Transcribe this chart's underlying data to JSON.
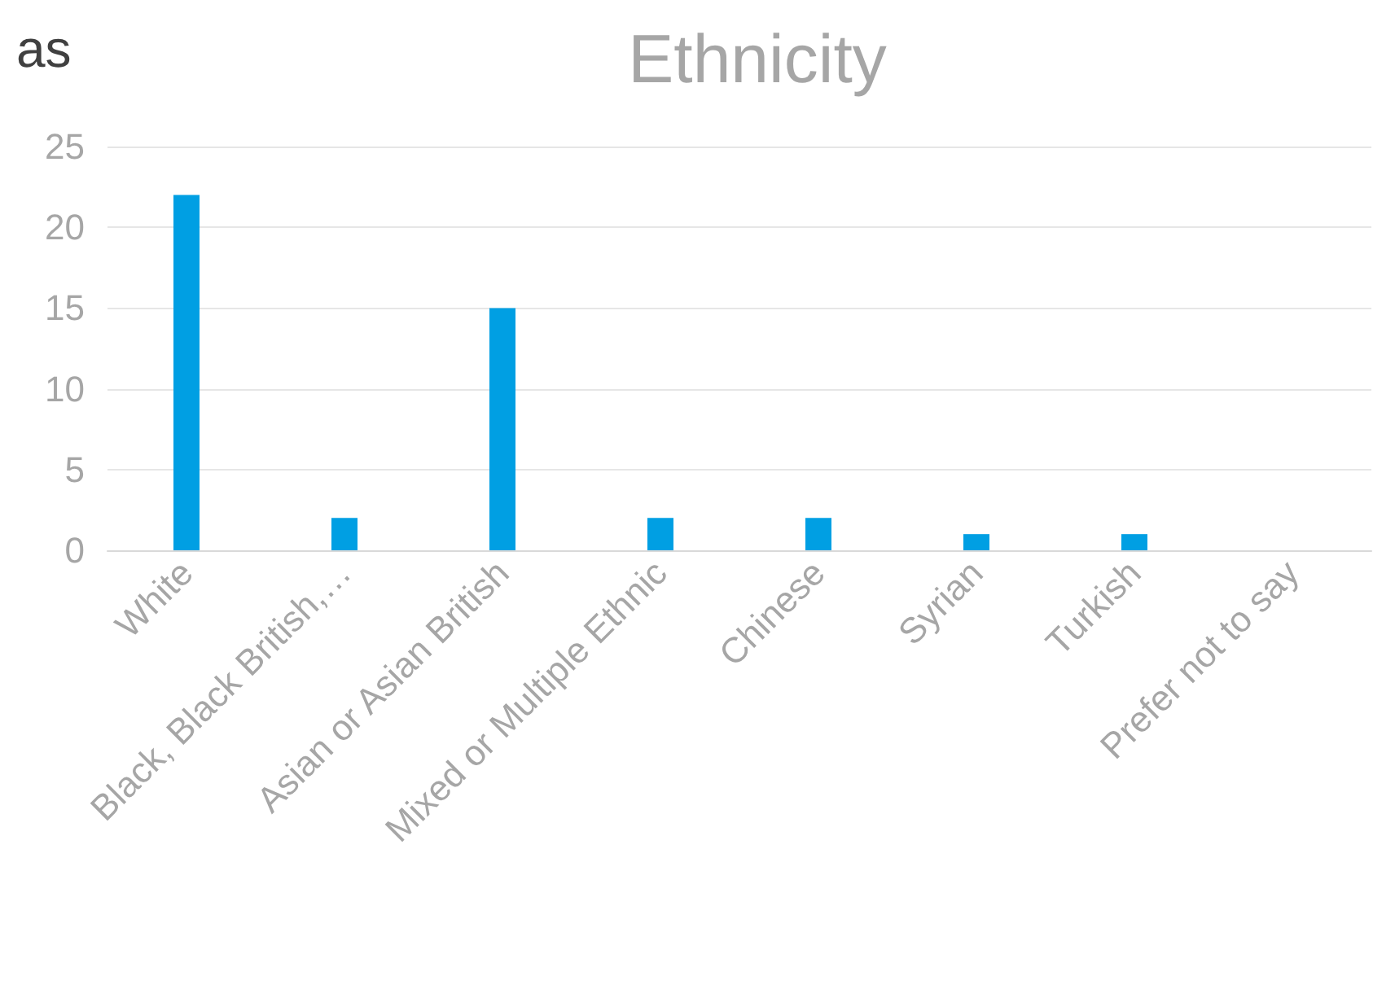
{
  "chart_data": {
    "type": "bar",
    "title": "Ethnicity",
    "categories": [
      "White",
      "Black, Black British,…",
      "Asian or Asian British",
      "Mixed or Multiple Ethnic",
      "Chinese",
      "Syrian",
      "Turkish",
      "Prefer not to say"
    ],
    "values": [
      22,
      2,
      15,
      2,
      2,
      1,
      1,
      0
    ],
    "color": "#009fe3",
    "ylim": [
      0,
      25
    ],
    "yticks": [
      0,
      5,
      10,
      15,
      20,
      25
    ],
    "grid": "y",
    "annotations": [
      "as"
    ]
  }
}
